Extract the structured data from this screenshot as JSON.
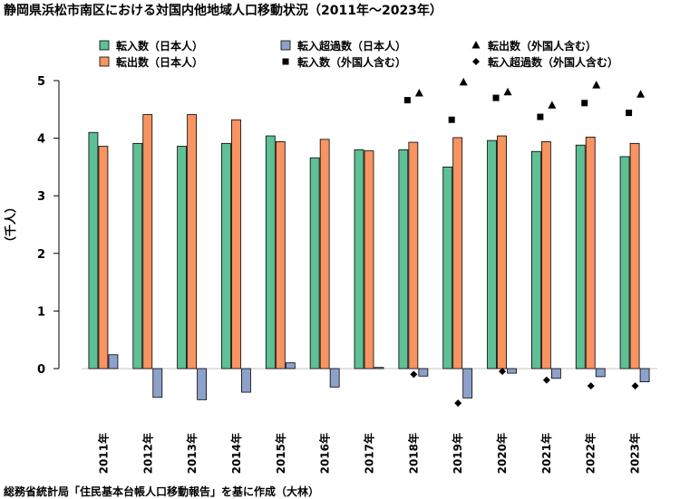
{
  "chart_data": {
    "type": "bar",
    "title": "静岡県浜松市南区における対国内他地域人口移動状況（2011年～2023年）",
    "ylabel": "（千人）",
    "ylim": [
      -0.7,
      5
    ],
    "yticks": [
      "0",
      "1",
      "2",
      "3",
      "4",
      "5"
    ],
    "categories": [
      "2011年",
      "2012年",
      "2013年",
      "2014年",
      "2015年",
      "2016年",
      "2017年",
      "2018年",
      "2019年",
      "2020年",
      "2021年",
      "2022年",
      "2023年"
    ],
    "series": [
      {
        "name": "転入数（日本人）",
        "kind": "bar",
        "color": "#5FBF95",
        "values": [
          4.1,
          3.91,
          3.86,
          3.91,
          4.04,
          3.66,
          3.8,
          3.8,
          3.5,
          3.96,
          3.77,
          3.88,
          3.68
        ]
      },
      {
        "name": "転出数（日本人）",
        "kind": "bar",
        "color": "#F79461",
        "values": [
          3.86,
          4.41,
          4.41,
          4.32,
          3.94,
          3.98,
          3.78,
          3.93,
          4.01,
          4.04,
          3.94,
          4.02,
          3.91
        ]
      },
      {
        "name": "転入超過数（日本人）",
        "kind": "bar",
        "color": "#8EA1CB",
        "values": [
          0.24,
          -0.5,
          -0.54,
          -0.41,
          0.1,
          -0.32,
          0.02,
          -0.13,
          -0.51,
          -0.08,
          -0.17,
          -0.14,
          -0.23
        ]
      },
      {
        "name": "転出数（外国人含む）",
        "kind": "marker",
        "marker": "triangle",
        "values": [
          null,
          null,
          null,
          null,
          null,
          null,
          null,
          4.78,
          4.97,
          4.8,
          4.57,
          4.92,
          4.76
        ]
      },
      {
        "name": "転入数（外国人含む）",
        "kind": "marker",
        "marker": "square",
        "values": [
          null,
          null,
          null,
          null,
          null,
          null,
          null,
          4.66,
          4.32,
          4.7,
          4.37,
          4.61,
          4.44
        ]
      },
      {
        "name": "転入超過数（外国人含む）",
        "kind": "marker",
        "marker": "diamond",
        "values": [
          null,
          null,
          null,
          null,
          null,
          null,
          null,
          -0.1,
          -0.6,
          -0.05,
          -0.2,
          -0.3,
          -0.3
        ]
      }
    ],
    "legend_position": "top",
    "grid": false
  },
  "source": "総務省統計局「住民基本台帳人口移動報告」を基に作成（大林）"
}
